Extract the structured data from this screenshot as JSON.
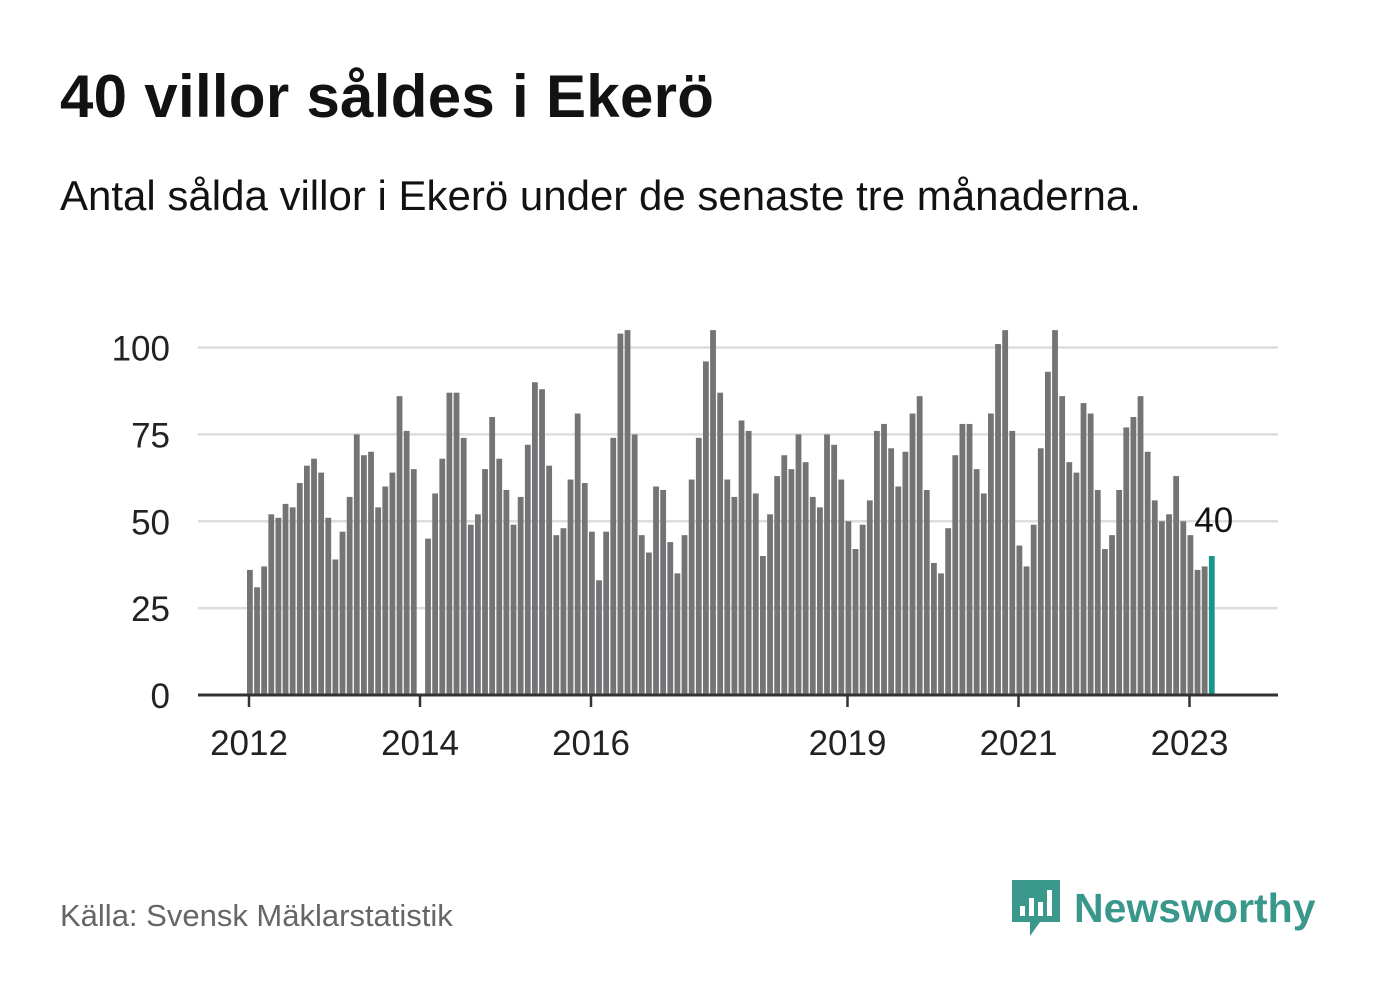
{
  "header": {
    "title": "40 villor såldes i Ekerö",
    "subtitle": "Antal sålda villor i Ekerö under de senaste tre månaderna."
  },
  "footer": {
    "source": "Källa: Svensk Mäklarstatistik",
    "brand": "Newsworthy"
  },
  "colors": {
    "bar": "#747477",
    "highlight": "#17958c",
    "grid": "#dddddd",
    "axis": "#333333",
    "brand": "#3a978c"
  },
  "chart_data": {
    "type": "bar",
    "title": "Antal sålda villor i Ekerö",
    "xlabel": "",
    "ylabel": "",
    "ylim": [
      0,
      105
    ],
    "yticks": [
      0,
      25,
      50,
      75,
      100
    ],
    "x_tick_labels": [
      "2012",
      "2014",
      "2016",
      "2019",
      "2021",
      "2023"
    ],
    "first_month": "2012-01",
    "highlight_label": "40",
    "values": [
      36,
      31,
      37,
      52,
      51,
      55,
      54,
      61,
      66,
      68,
      64,
      51,
      39,
      47,
      57,
      75,
      69,
      70,
      54,
      60,
      64,
      86,
      76,
      65,
      0,
      45,
      58,
      68,
      87,
      87,
      74,
      49,
      52,
      65,
      80,
      68,
      59,
      49,
      57,
      72,
      90,
      88,
      66,
      46,
      48,
      62,
      81,
      61,
      47,
      33,
      47,
      74,
      104,
      105,
      75,
      46,
      41,
      60,
      59,
      44,
      35,
      46,
      62,
      74,
      96,
      105,
      87,
      62,
      57,
      79,
      76,
      58,
      40,
      52,
      63,
      69,
      65,
      75,
      67,
      57,
      54,
      75,
      72,
      62,
      50,
      42,
      49,
      56,
      76,
      78,
      71,
      60,
      70,
      81,
      86,
      59,
      38,
      35,
      48,
      69,
      78,
      78,
      65,
      58,
      81,
      101,
      105,
      76,
      43,
      37,
      49,
      71,
      93,
      105,
      86,
      67,
      64,
      84,
      81,
      59,
      42,
      46,
      59,
      77,
      80,
      86,
      70,
      56,
      50,
      52,
      63,
      50,
      46,
      36,
      37,
      40
    ]
  }
}
